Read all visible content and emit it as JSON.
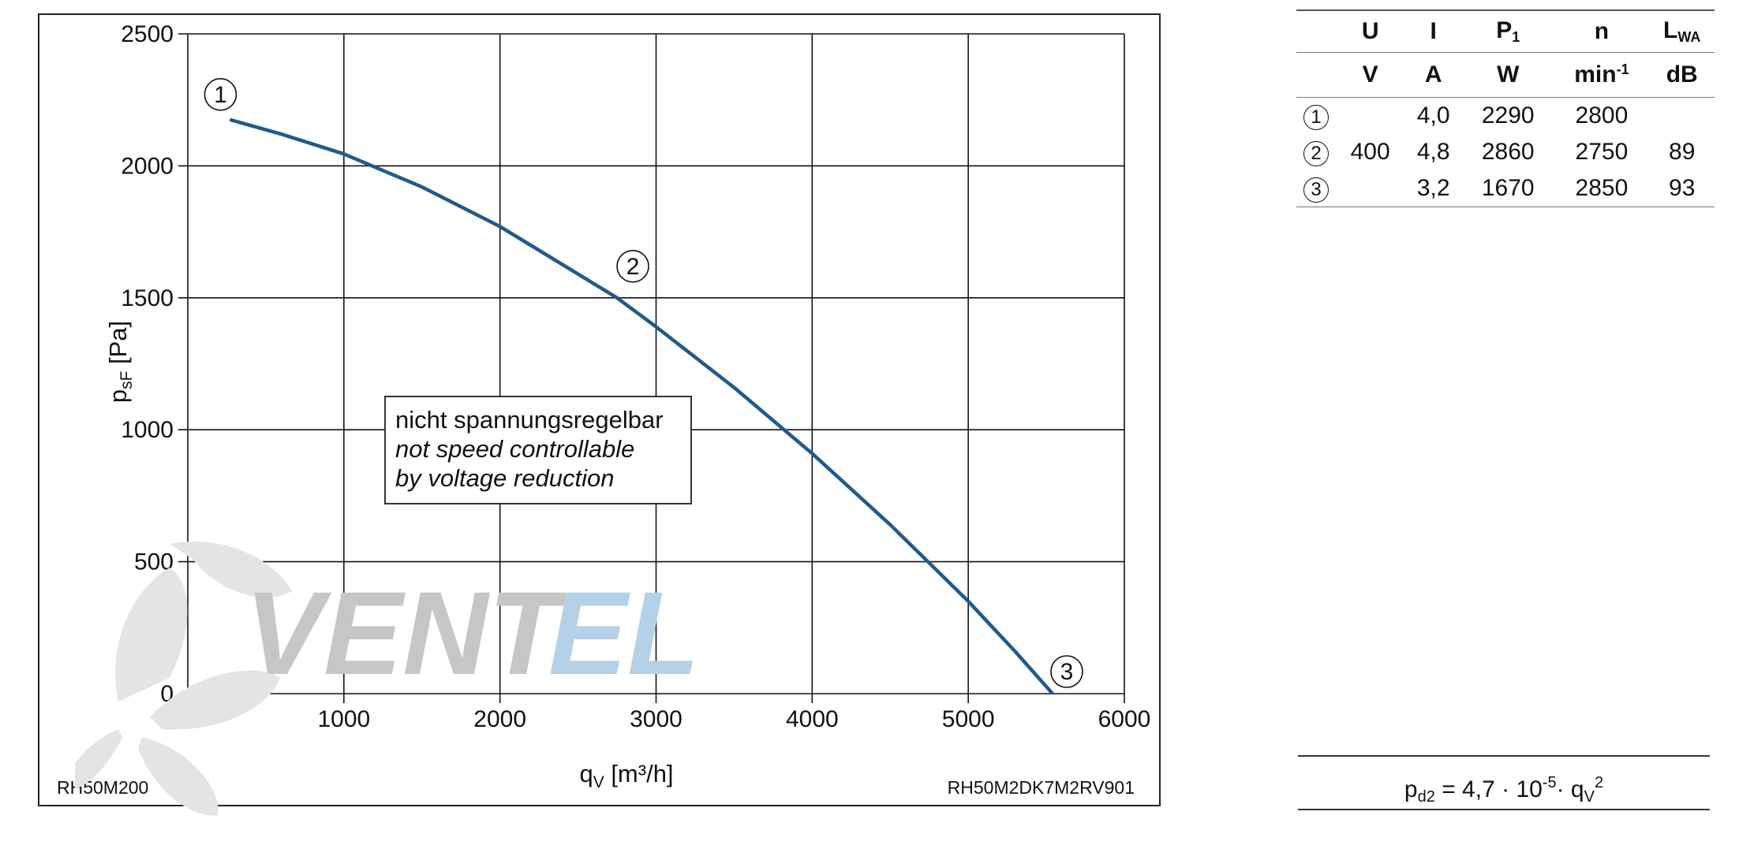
{
  "chart_data": {
    "type": "line",
    "xlabel_main": "q",
    "xlabel_sub": "V",
    "xlabel_unit": " [m³/h]",
    "ylabel_main": "p",
    "ylabel_sub": "sF",
    "ylabel_unit": " [Pa]",
    "xlim": [
      0,
      6000
    ],
    "ylim": [
      0,
      2500
    ],
    "x_ticks": [
      0,
      1000,
      2000,
      3000,
      4000,
      5000,
      6000
    ],
    "y_ticks": [
      0,
      500,
      1000,
      1500,
      2000,
      2500
    ],
    "grid": true,
    "series": [
      {
        "name": "RH50M2DK7M2RV901",
        "color": "#1f5a8c",
        "x": [
          270,
          600,
          1000,
          1500,
          2000,
          2500,
          2750,
          3000,
          3500,
          4000,
          4500,
          5000,
          5300,
          5540
        ],
        "y": [
          2175,
          2120,
          2045,
          1920,
          1770,
          1590,
          1500,
          1390,
          1160,
          910,
          640,
          350,
          160,
          0
        ]
      }
    ],
    "operating_points": [
      {
        "label": "1",
        "x": 270,
        "y": 2175
      },
      {
        "label": "2",
        "x": 2750,
        "y": 1500
      },
      {
        "label": "3",
        "x": 5540,
        "y": 0
      }
    ]
  },
  "annotation": {
    "line1": "nicht spannungsregelbar",
    "line2": "not speed controllable",
    "line3": "by voltage reduction"
  },
  "labels": {
    "model_left": "RH50M200",
    "model_right": "RH50M2DK7M2RV901"
  },
  "watermark": {
    "text_gray": "VENT",
    "text_blue": "EL",
    "colors": {
      "gray": "#c8c8c8",
      "blue": "#b7d3ea",
      "blade": "#e2e2e2"
    }
  },
  "table": {
    "headers": [
      {
        "main": "U",
        "sub": ""
      },
      {
        "main": "I",
        "sub": ""
      },
      {
        "main": "P",
        "sub": "1"
      },
      {
        "main": "n",
        "sub": ""
      },
      {
        "main": "L",
        "sub": "WA"
      }
    ],
    "units": [
      {
        "main": "V",
        "sup": ""
      },
      {
        "main": "A",
        "sup": ""
      },
      {
        "main": "W",
        "sup": ""
      },
      {
        "main": "min",
        "sup": "-1"
      },
      {
        "main": "dB",
        "sup": ""
      }
    ],
    "rows": [
      {
        "marker": "1",
        "U": "",
        "I": "4,0",
        "P1": "2290",
        "n": "2800",
        "LWA": ""
      },
      {
        "marker": "2",
        "U": "400",
        "I": "4,8",
        "P1": "2860",
        "n": "2750",
        "LWA": "89"
      },
      {
        "marker": "3",
        "U": "",
        "I": "3,2",
        "P1": "1670",
        "n": "2850",
        "LWA": "93"
      }
    ]
  },
  "formula": {
    "lhs_main": "p",
    "lhs_sub": "d2",
    "coef": " = 4,7 · 10",
    "exp": "-5",
    "mid": "· q",
    "q_sub": "V",
    "q_sup": "2"
  }
}
